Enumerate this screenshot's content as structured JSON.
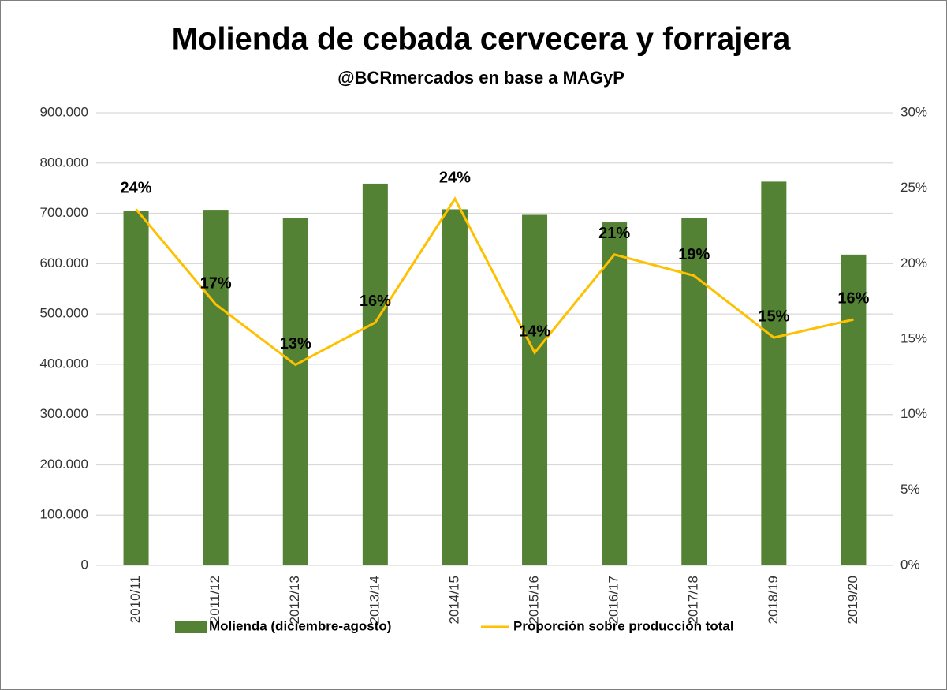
{
  "chart_data": {
    "type": "bar_line",
    "title": "Molienda de cebada cervecera y forrajera",
    "subtitle": "@BCRmercados en base a MAGyP",
    "categories": [
      "2010/11",
      "2011/12",
      "2012/13",
      "2013/14",
      "2014/15",
      "2015/16",
      "2016/17",
      "2017/18",
      "2018/19",
      "2019/20"
    ],
    "series": [
      {
        "name": "Molienda (diciembre-agosto)",
        "type": "bar",
        "color": "#548235",
        "values": [
          704000,
          707000,
          691000,
          759000,
          708000,
          697000,
          682000,
          691000,
          763000,
          618000
        ]
      },
      {
        "name": "Proporción sobre producción total",
        "type": "line",
        "axis": "y2",
        "color": "#ffc000",
        "values": [
          23.6,
          17.3,
          13.3,
          16.1,
          24.3,
          14.1,
          20.6,
          19.2,
          15.1,
          16.3
        ],
        "value_labels": [
          "24%",
          "17%",
          "13%",
          "16%",
          "24%",
          "14%",
          "21%",
          "19%",
          "15%",
          "16%"
        ]
      }
    ],
    "ylim": [
      0,
      900000
    ],
    "yticks": [
      0,
      {
        "value": 100000,
        "label": "100.000"
      },
      {
        "value": 200000,
        "label": "200.000"
      },
      {
        "value": 300000,
        "label": "300.000"
      },
      {
        "value": 400000,
        "label": "400.000"
      },
      {
        "value": 500000,
        "label": "500.000"
      },
      {
        "value": 600000,
        "label": "600.000"
      },
      {
        "value": 700000,
        "label": "700.000"
      },
      {
        "value": 800000,
        "label": "800.000"
      },
      {
        "value": 900000,
        "label": "900.000"
      }
    ],
    "y2lim": [
      0,
      30
    ],
    "y2ticks": [
      {
        "value": 0,
        "label": "0%"
      },
      {
        "value": 5,
        "label": "5%"
      },
      {
        "value": 10,
        "label": "10%"
      },
      {
        "value": 15,
        "label": "15%"
      },
      {
        "value": 20,
        "label": "20%"
      },
      {
        "value": 25,
        "label": "25%"
      },
      {
        "value": 30,
        "label": "30%"
      }
    ],
    "grid": true,
    "legend": "bottom"
  }
}
